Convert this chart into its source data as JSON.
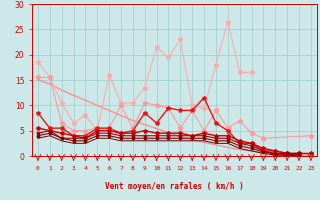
{
  "title": "",
  "xlabel": "Vent moyen/en rafales ( km/h )",
  "xlim": [
    -0.5,
    23.5
  ],
  "ylim": [
    0,
    30
  ],
  "xticks": [
    0,
    1,
    2,
    3,
    4,
    5,
    6,
    7,
    8,
    9,
    10,
    11,
    12,
    13,
    14,
    15,
    16,
    17,
    18,
    19,
    20,
    21,
    22,
    23
  ],
  "yticks": [
    0,
    5,
    10,
    15,
    20,
    25,
    30
  ],
  "background_color": "#cce8e8",
  "grid_color": "#99cccc",
  "series": [
    {
      "x": [
        0,
        1,
        2,
        3,
        4,
        5,
        6,
        7,
        8,
        9,
        10,
        11,
        12,
        13,
        14,
        15,
        16,
        17,
        18
      ],
      "y": [
        18.5,
        15.5,
        10.5,
        6.5,
        8.0,
        5.0,
        16.0,
        10.5,
        10.5,
        13.5,
        21.5,
        19.5,
        23.0,
        10.0,
        9.5,
        18.0,
        26.5,
        16.5,
        16.5
      ],
      "color": "#ffaaaa",
      "lw": 0.8,
      "marker": "*",
      "ms": 3.5
    },
    {
      "x": [
        0,
        1,
        2,
        3,
        4,
        5,
        6,
        7,
        8,
        9,
        10,
        11,
        12,
        13,
        14,
        15,
        16,
        17,
        18,
        19,
        23
      ],
      "y": [
        15.5,
        15.5,
        6.5,
        5.0,
        5.0,
        5.5,
        5.5,
        10.0,
        5.5,
        10.5,
        10.0,
        9.5,
        5.5,
        9.0,
        5.0,
        9.0,
        5.5,
        7.0,
        4.5,
        3.5,
        4.0
      ],
      "color": "#ff9999",
      "lw": 0.8,
      "marker": "*",
      "ms": 3.5
    },
    {
      "x": [
        0,
        1,
        2,
        3,
        4,
        5,
        6,
        7,
        8,
        9,
        10,
        11,
        12,
        13,
        14,
        15,
        16,
        17,
        18,
        19,
        20,
        21,
        22,
        23
      ],
      "y": [
        15.0,
        14.2,
        13.0,
        12.0,
        11.0,
        10.0,
        9.0,
        8.0,
        7.0,
        6.2,
        5.4,
        4.6,
        3.8,
        3.2,
        2.7,
        2.2,
        1.7,
        1.3,
        1.0,
        0.7,
        0.5,
        0.3,
        0.2,
        0.1
      ],
      "color": "#ff8888",
      "lw": 0.9,
      "marker": null,
      "ms": 0
    },
    {
      "x": [
        0,
        1,
        2,
        3,
        4,
        5,
        6,
        7,
        8,
        9,
        10,
        11,
        12,
        13,
        14,
        15,
        16,
        17,
        18,
        19,
        20,
        21,
        22
      ],
      "y": [
        8.5,
        5.5,
        5.5,
        4.0,
        4.0,
        5.5,
        5.5,
        4.5,
        5.0,
        8.5,
        6.5,
        9.5,
        9.0,
        9.0,
        11.5,
        6.5,
        5.0,
        2.5,
        2.5,
        1.0,
        1.0,
        0.5,
        0.5
      ],
      "color": "#ee1111",
      "lw": 1.0,
      "marker": "*",
      "ms": 3.0
    },
    {
      "x": [
        0,
        1,
        2,
        3,
        4,
        5,
        6,
        7,
        8,
        9,
        10,
        11,
        12,
        13,
        14,
        15,
        16,
        17,
        18,
        19,
        20,
        21,
        22,
        23
      ],
      "y": [
        5.5,
        5.0,
        4.5,
        4.0,
        3.5,
        5.0,
        5.0,
        4.5,
        4.5,
        5.0,
        4.5,
        4.5,
        4.5,
        4.0,
        4.5,
        4.0,
        4.0,
        3.0,
        2.5,
        1.5,
        1.0,
        0.5,
        0.5,
        0.5
      ],
      "color": "#cc0000",
      "lw": 1.0,
      "marker": "*",
      "ms": 3.0
    },
    {
      "x": [
        0,
        1,
        2,
        3,
        4,
        5,
        6,
        7,
        8,
        9,
        10,
        11,
        12,
        13,
        14,
        15,
        16,
        17,
        18,
        19,
        20,
        21,
        22
      ],
      "y": [
        4.5,
        5.0,
        3.5,
        3.5,
        3.5,
        4.5,
        4.5,
        4.0,
        4.0,
        4.0,
        4.0,
        4.0,
        4.0,
        4.0,
        4.0,
        3.5,
        3.5,
        2.5,
        2.0,
        1.0,
        0.5,
        0.5,
        0.5
      ],
      "color": "#aa0000",
      "lw": 0.8,
      "marker": "*",
      "ms": 2.5
    },
    {
      "x": [
        0,
        1,
        2,
        3,
        4,
        5,
        6,
        7,
        8,
        9,
        10,
        11,
        12,
        13,
        14,
        15,
        16,
        17,
        18,
        19,
        20,
        21,
        22
      ],
      "y": [
        4.0,
        4.5,
        3.5,
        3.0,
        3.0,
        4.0,
        4.0,
        3.5,
        3.5,
        3.5,
        3.5,
        3.5,
        3.5,
        3.5,
        3.5,
        3.0,
        3.0,
        2.0,
        1.5,
        0.8,
        0.4,
        0.3,
        0.2
      ],
      "color": "#880000",
      "lw": 0.8,
      "marker": "*",
      "ms": 2.5
    },
    {
      "x": [
        0,
        1,
        2,
        3,
        4,
        5,
        6,
        7,
        8,
        9,
        10,
        11,
        12,
        13,
        14,
        15,
        16,
        17,
        18,
        19,
        20,
        21,
        22
      ],
      "y": [
        3.5,
        4.0,
        3.0,
        2.5,
        2.5,
        3.5,
        3.5,
        3.0,
        3.0,
        3.0,
        3.0,
        3.0,
        3.0,
        3.0,
        3.0,
        2.5,
        2.5,
        1.5,
        1.0,
        0.5,
        0.2,
        0.1,
        0.1
      ],
      "color": "#660000",
      "lw": 0.7,
      "marker": null,
      "ms": 0
    }
  ],
  "arrow_color": "#cc0000"
}
